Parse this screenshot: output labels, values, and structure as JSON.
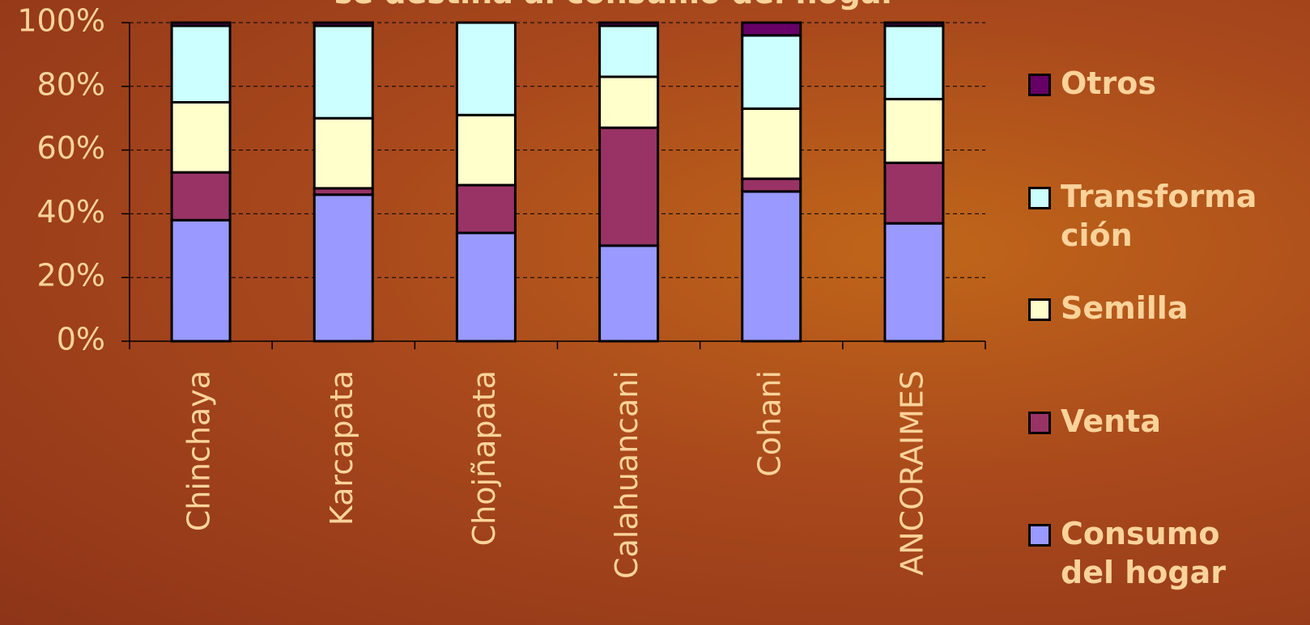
{
  "chart_data": {
    "type": "stacked_bar_100",
    "title": "se destina al consumo del hogar",
    "categories": [
      "Chinchaya",
      "Karcapata",
      "Chojñapata",
      "Calahuancani",
      "Cohani",
      "ANCORAIMES"
    ],
    "series": [
      {
        "name": "Consumo del hogar",
        "color": "#9999ff",
        "values": [
          38,
          46,
          34,
          30,
          47,
          37
        ]
      },
      {
        "name": "Venta",
        "color": "#993366",
        "values": [
          15,
          2,
          15,
          37,
          4,
          19
        ]
      },
      {
        "name": "Semilla",
        "color": "#ffffcc",
        "values": [
          22,
          22,
          22,
          16,
          22,
          20
        ]
      },
      {
        "name": "Transformación",
        "color": "#ccffff",
        "values": [
          24,
          29,
          29,
          16,
          23,
          23
        ]
      },
      {
        "name": "Otros",
        "color": "#660066",
        "values": [
          1,
          1,
          0,
          1,
          4,
          1
        ]
      }
    ],
    "ylim": [
      0,
      100
    ],
    "yticks": [
      {
        "value": 0,
        "label": "0%"
      },
      {
        "value": 20,
        "label": "20%"
      },
      {
        "value": 40,
        "label": "40%"
      },
      {
        "value": 60,
        "label": "60%"
      },
      {
        "value": 80,
        "label": "80%"
      },
      {
        "value": 100,
        "label": "100%"
      }
    ],
    "grid": true
  }
}
